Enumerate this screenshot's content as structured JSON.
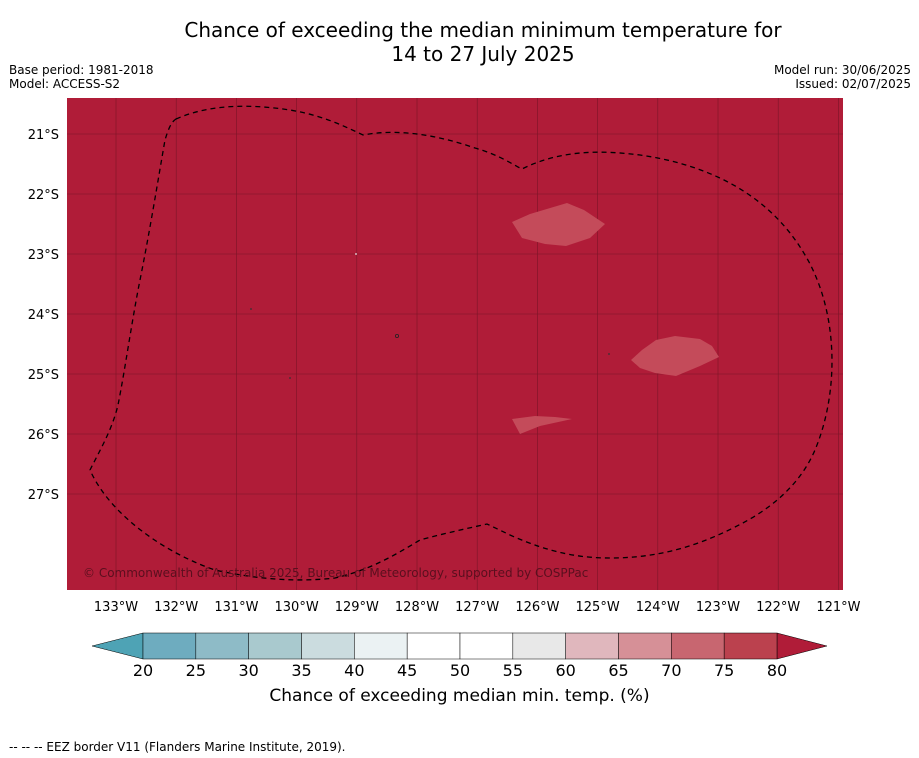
{
  "title_line1": "Chance of exceeding the median minimum temperature for",
  "title_line2": "14 to 27 July 2025",
  "base_period": "Base period: 1981-2018",
  "model": "Model: ACCESS-S2",
  "model_run": "Model run: 30/06/2025",
  "issued": "Issued: 02/07/2025",
  "copyright": "© Commonwealth of Australia 2025, Bureau of Meteorology, supported by COSPPac",
  "footnote": "-- -- -- EEZ border V11 (Flanders Marine Institute, 2019).",
  "map": {
    "lon_labels": [
      "133°W",
      "132°W",
      "131°W",
      "130°W",
      "129°W",
      "128°W",
      "127°W",
      "126°W",
      "125°W",
      "124°W",
      "123°W",
      "122°W",
      "121°W"
    ],
    "lat_labels": [
      "21°S",
      "22°S",
      "23°S",
      "24°S",
      "25°S",
      "26°S",
      "27°S"
    ],
    "background_color": "#b01c38",
    "patch_color": "#c44b5a",
    "border_color": "#000000"
  },
  "colorbar": {
    "title": "Chance of exceeding median min. temp. (%)",
    "ticks": [
      "20",
      "25",
      "30",
      "35",
      "40",
      "45",
      "50",
      "55",
      "60",
      "65",
      "70",
      "75",
      "80"
    ],
    "colors": [
      "#6eacbf",
      "#8ebbc7",
      "#a9c9ce",
      "#cbdcdf",
      "#ebf2f3",
      "#ffffff",
      "#ffffff",
      "#e8e8e8",
      "#e0b7bd",
      "#d69097",
      "#c86670",
      "#bb414e"
    ],
    "low_extend_color": "#4ea3b5",
    "high_extend_color": "#b01c38"
  }
}
